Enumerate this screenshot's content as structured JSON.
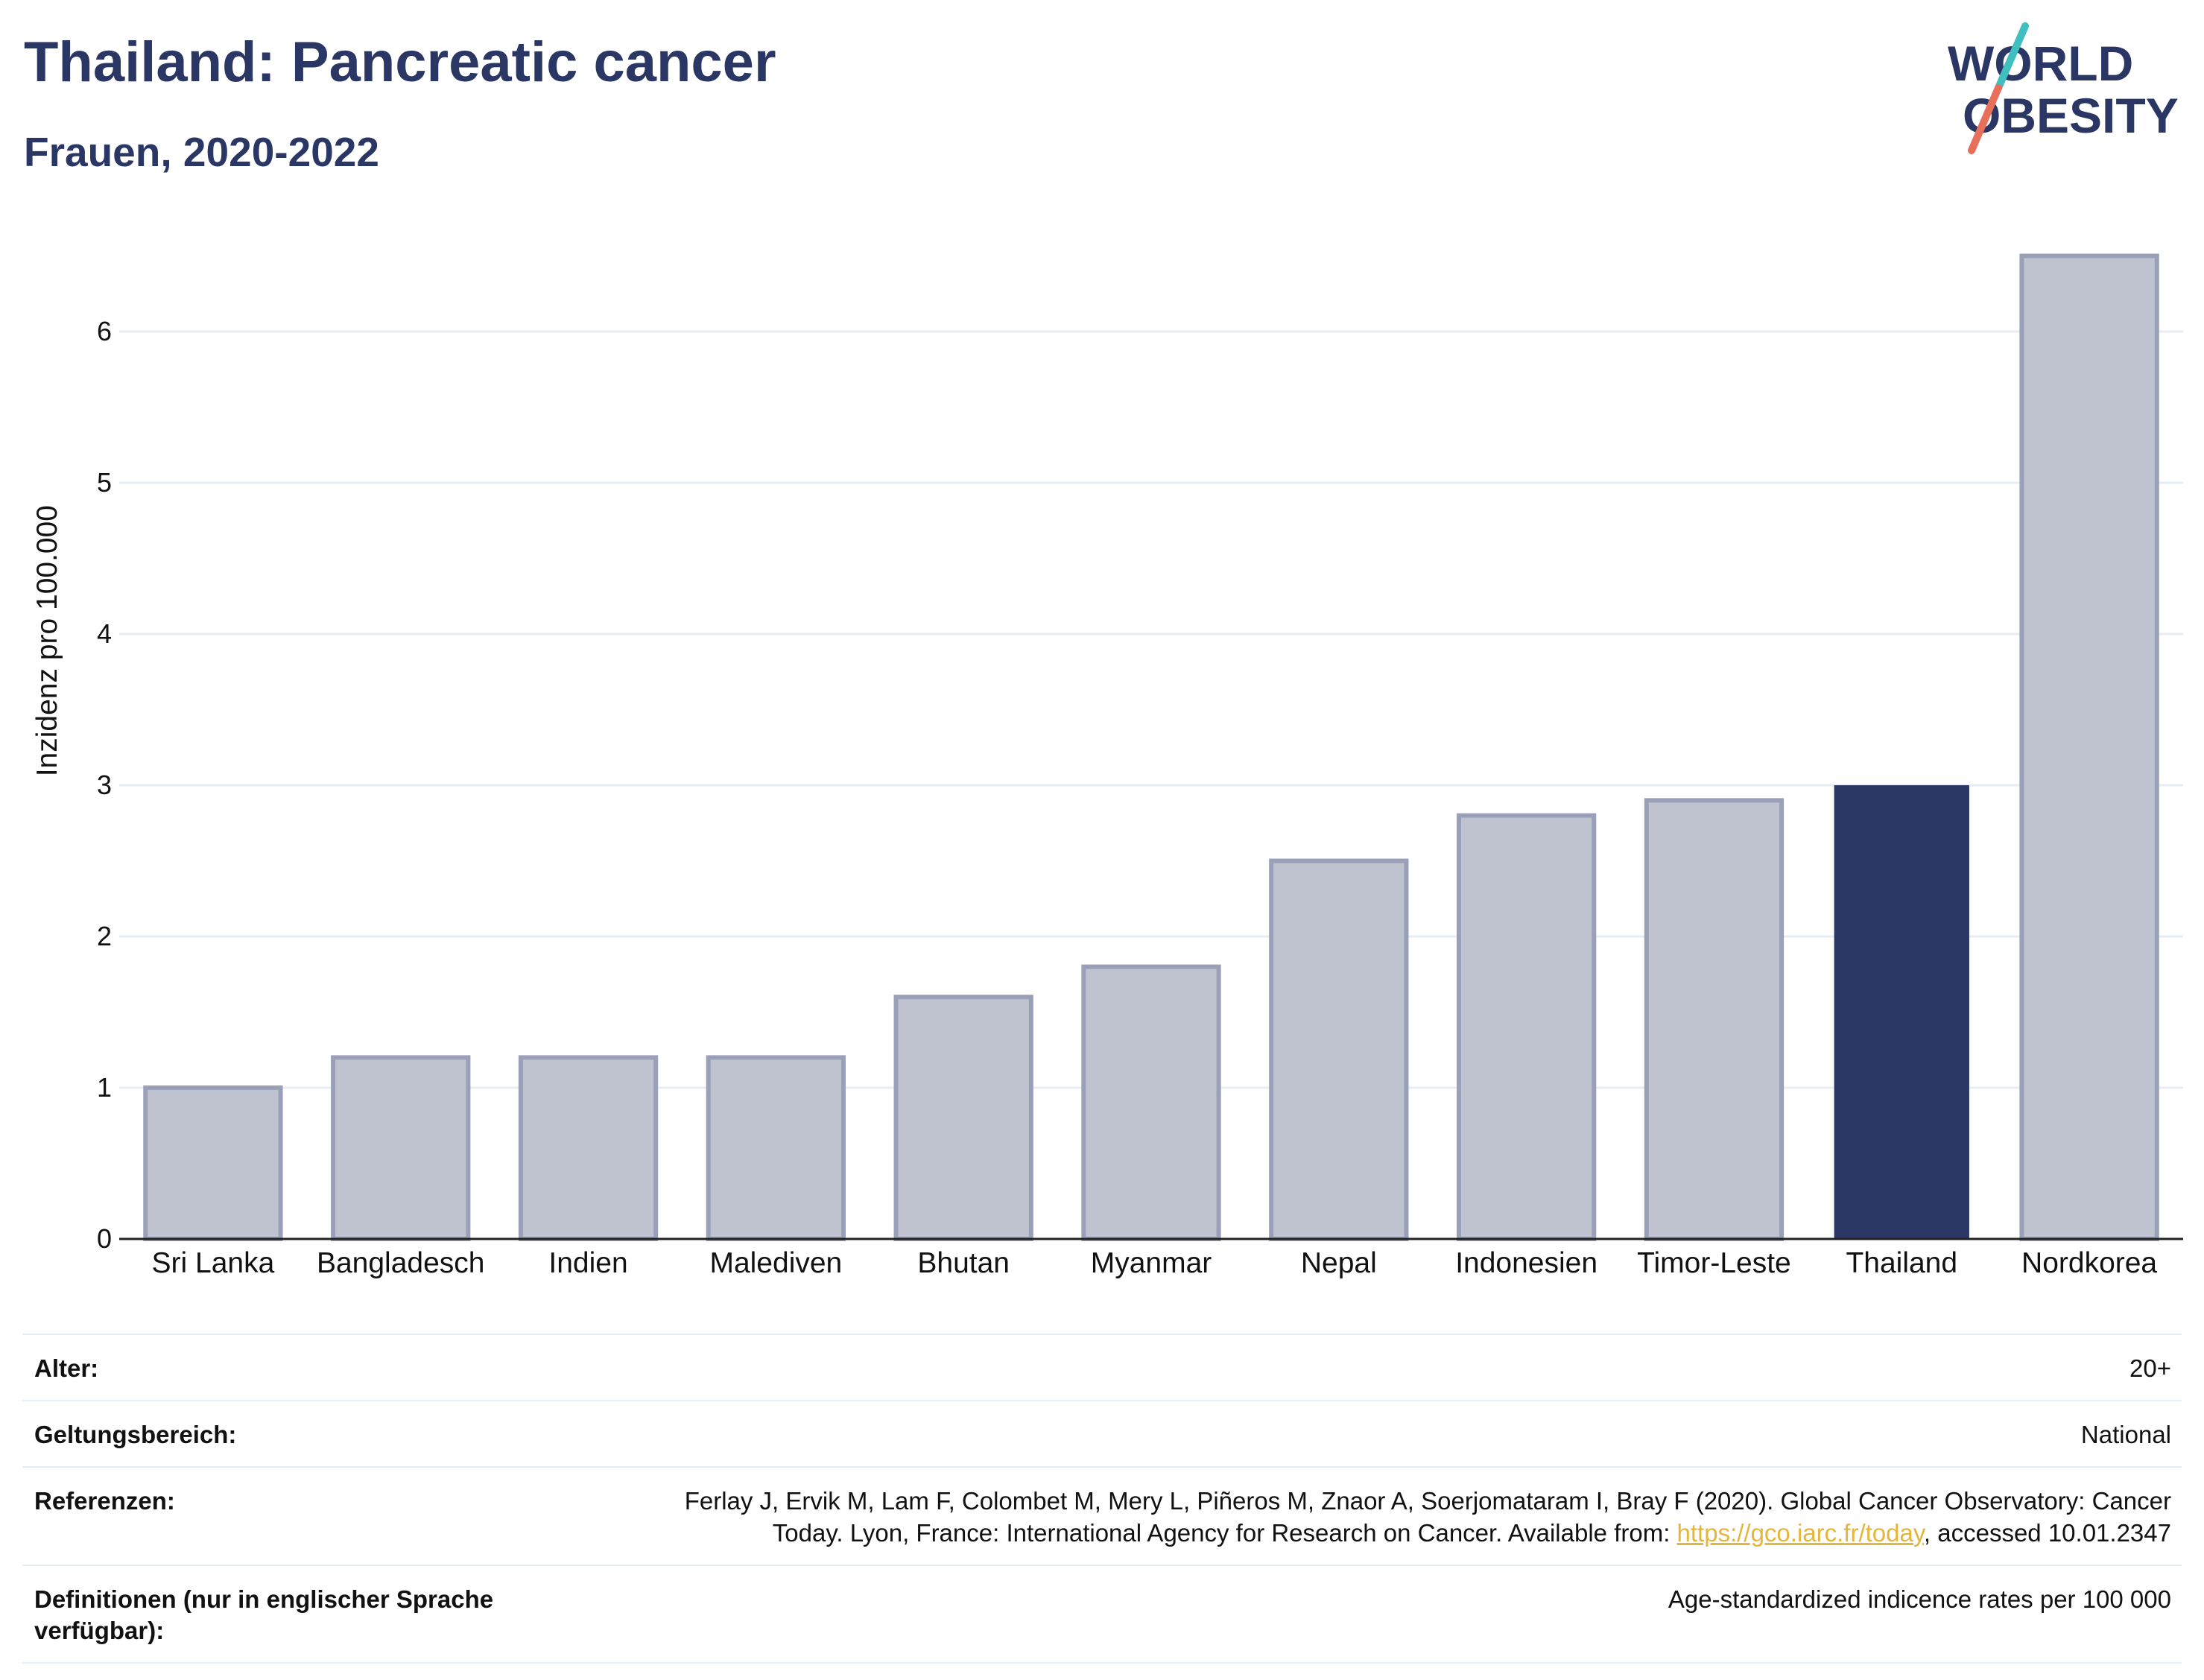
{
  "header": {
    "title": "Thailand: Pancreatic cancer",
    "subtitle": "Frauen, 2020-2022"
  },
  "logo": {
    "line1": "WORLD",
    "line2": "OBESITY",
    "slash_colors": [
      "#3fbfc0",
      "#e8705a"
    ]
  },
  "colors": {
    "highlight_bar": "#2a3663",
    "other_bar_fill": "#bfc3d0",
    "other_bar_stroke": "#9aa0b8",
    "title": "#2a3663",
    "gridline": "#e6edf3"
  },
  "chart_data": {
    "type": "bar",
    "title": "",
    "xlabel": "",
    "ylabel": "Inzidenz pro 100.000",
    "ylim": [
      0,
      6.75
    ],
    "yticks": [
      0,
      1,
      2,
      3,
      4,
      5,
      6
    ],
    "grid": true,
    "categories": [
      "Sri Lanka",
      "Bangladesch",
      "Indien",
      "Malediven",
      "Bhutan",
      "Myanmar",
      "Nepal",
      "Indonesien",
      "Timor-Leste",
      "Thailand",
      "Nordkorea"
    ],
    "values": [
      1.0,
      1.2,
      1.2,
      1.2,
      1.6,
      1.8,
      2.5,
      2.8,
      2.9,
      3.0,
      6.5
    ],
    "highlight": "Thailand"
  },
  "info": {
    "rows": [
      {
        "key": "Alter:",
        "value": "20+"
      },
      {
        "key": "Geltungsbereich:",
        "value": "National"
      },
      {
        "key": "Referenzen:",
        "value_pre": "Ferlay J, Ervik M, Lam F, Colombet M, Mery L, Piñeros M, Znaor A, Soerjomataram I, Bray F (2020). Global Cancer Observatory: Cancer Today. Lyon, France: International Agency for Research on Cancer. Available from: ",
        "link": "https://gco.iarc.fr/today",
        "value_post": ", accessed 10.01.2347"
      },
      {
        "key": "Definitionen (nur in englischer Sprache verfügbar):",
        "value": "Age-standardized indicence rates per 100 000"
      }
    ]
  }
}
